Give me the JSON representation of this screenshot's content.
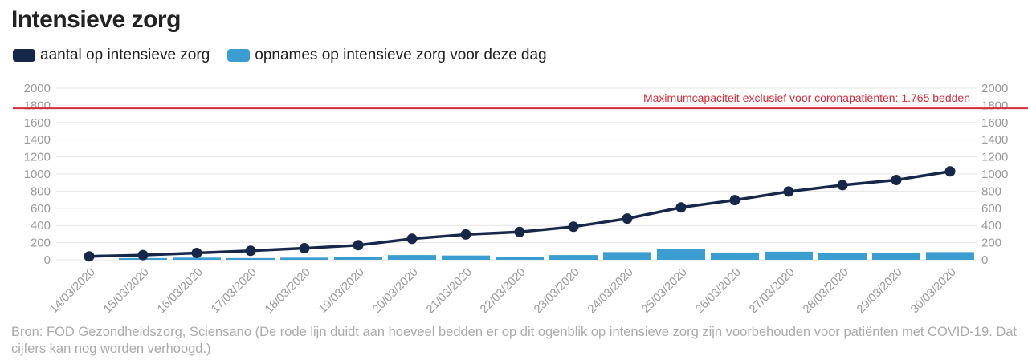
{
  "title": "Intensieve zorg",
  "legend": [
    {
      "label": "aantal op intensieve zorg",
      "color": "#172749"
    },
    {
      "label": "opnames op intensieve zorg voor deze dag",
      "color": "#3c9dd0"
    }
  ],
  "source": "Bron: FOD Gezondheidszorg, Sciensano (De rode lijn duidt aan hoeveel bedden er op dit ogenblik op intensieve zorg zijn voorbehouden voor patiënten met COVID-19. Dat cijfers kan nog worden verhoogd.)",
  "colors": {
    "line": "#172749",
    "bar": "#3c9dd0",
    "capacity": "#d62b3a",
    "grid": "#e6e6e6",
    "tick": "#999999"
  },
  "chart_data": {
    "type": "bar+line",
    "categories": [
      "14/03/2020",
      "15/03/2020",
      "16/03/2020",
      "17/03/2020",
      "18/03/2020",
      "19/03/2020",
      "20/03/2020",
      "21/03/2020",
      "22/03/2020",
      "23/03/2020",
      "24/03/2020",
      "25/03/2020",
      "26/03/2020",
      "27/03/2020",
      "28/03/2020",
      "29/03/2020",
      "30/03/2020"
    ],
    "series": [
      {
        "name": "aantal op intensieve zorg",
        "type": "line",
        "values": [
          40,
          55,
          80,
          105,
          135,
          170,
          245,
          295,
          325,
          385,
          480,
          610,
          695,
          795,
          870,
          930,
          1030
        ]
      },
      {
        "name": "opnames op intensieve zorg voor deze dag",
        "type": "bar",
        "values": [
          0,
          20,
          25,
          20,
          25,
          35,
          55,
          50,
          30,
          55,
          90,
          130,
          85,
          95,
          75,
          75,
          90
        ]
      }
    ],
    "y_ticks": [
      0,
      200,
      400,
      600,
      800,
      1000,
      1200,
      1400,
      1600,
      1800,
      2000
    ],
    "ylim": [
      0,
      2000
    ],
    "capacity_line": {
      "value": 1765,
      "label": "Maximumcapaciteit exclusief voor coronapatiënten: 1.765 bedden"
    },
    "grid": true,
    "legend_position": "top-left"
  }
}
